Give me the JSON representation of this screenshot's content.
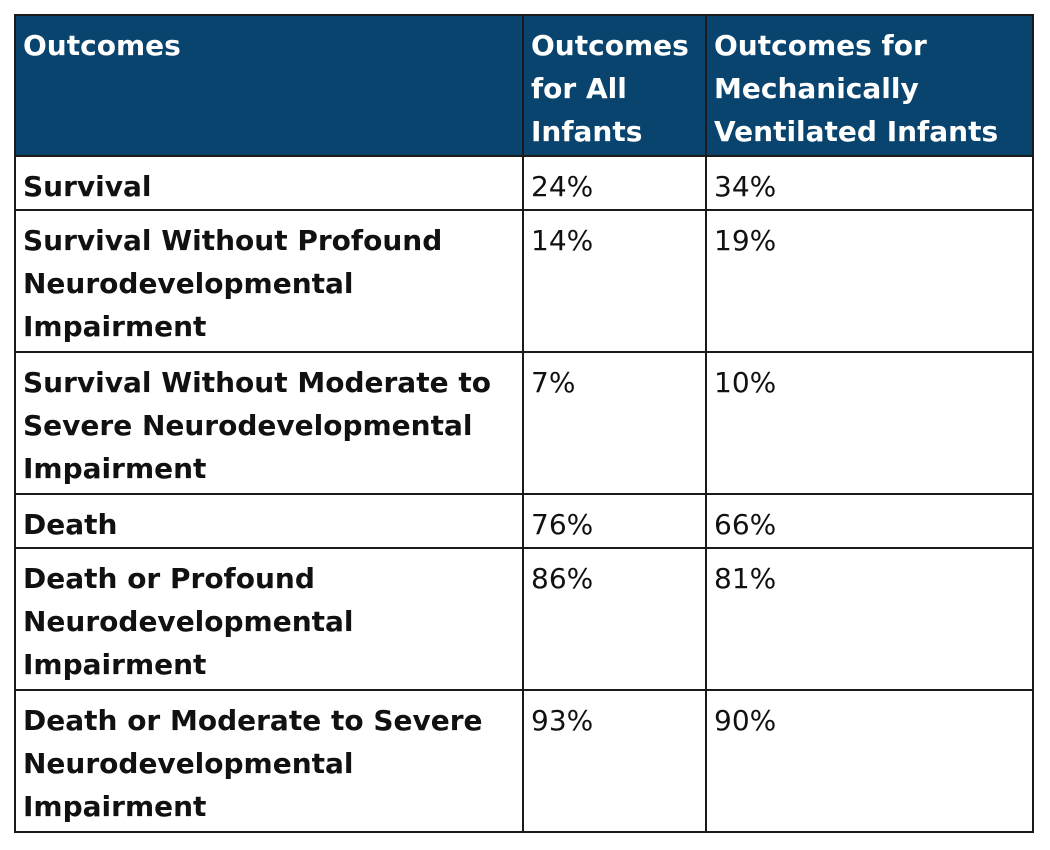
{
  "table": {
    "header": [
      "Outcomes",
      "Outcomes for All Infants",
      "Outcomes for Mechanically Ventilated Infants"
    ],
    "rows": [
      [
        "Survival",
        "24%",
        "34%"
      ],
      [
        "Survival Without Profound Neurodevelopmental Impairment",
        "14%",
        "19%"
      ],
      [
        "Survival Without Moderate to Severe Neurodevelopmental Impairment",
        "7%",
        "10%"
      ],
      [
        "Death",
        "76%",
        "66%"
      ],
      [
        "Death or Profound Neurodevelopmental Impairment",
        "86%",
        "81%"
      ],
      [
        "Death or Moderate to Severe Neurodevelopmental Impairment",
        "93%",
        "90%"
      ]
    ]
  }
}
